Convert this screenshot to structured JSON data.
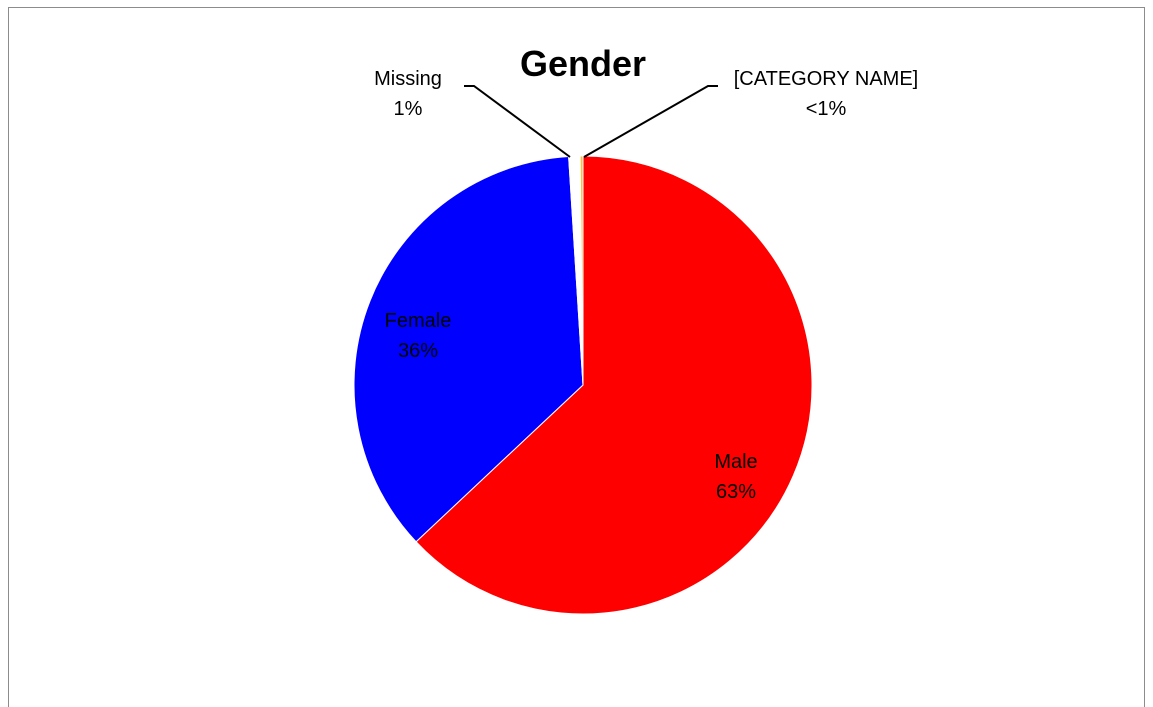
{
  "chart_data": {
    "type": "pie",
    "title": "Gender",
    "slices": [
      {
        "label": "Male",
        "percent_label": "63%",
        "value": 63,
        "color": "#ff0000"
      },
      {
        "label": "Female",
        "percent_label": "36%",
        "value": 36,
        "color": "#0000ff"
      },
      {
        "label": "Missing",
        "percent_label": "1%",
        "value": 0.8,
        "color": "#ffffff"
      },
      {
        "label": "[CATEGORY NAME]",
        "percent_label": "<1%",
        "value": 0.2,
        "color": "#f5c242"
      }
    ],
    "start_angle_deg": 0,
    "direction": "clockwise",
    "legend": "none"
  }
}
